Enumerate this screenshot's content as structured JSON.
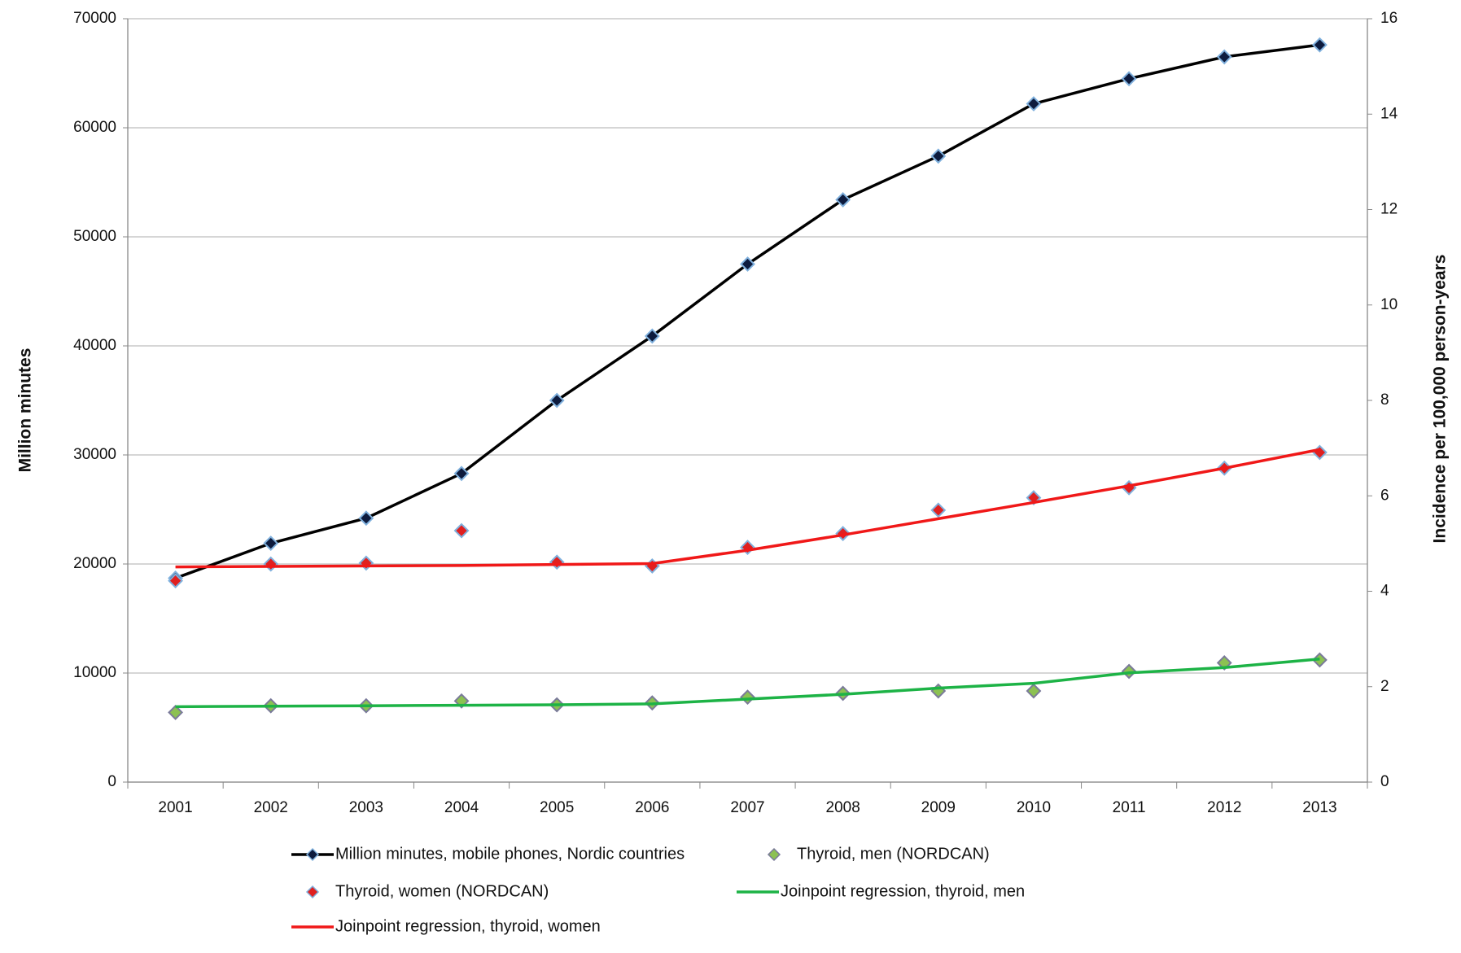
{
  "chart_data": {
    "type": "line",
    "y_label": "Million minutes",
    "y2_label": "Incidence per 100,000 person-years",
    "categories": [
      "2001",
      "2002",
      "2003",
      "2004",
      "2005",
      "2006",
      "2007",
      "2008",
      "2009",
      "2010",
      "2011",
      "2012",
      "2013"
    ],
    "ylim": [
      0,
      70000
    ],
    "yticks": [
      0,
      10000,
      20000,
      30000,
      40000,
      50000,
      60000,
      70000
    ],
    "y2lim": [
      0,
      16
    ],
    "y2ticks": [
      0,
      2,
      4,
      6,
      8,
      10,
      12,
      14,
      16
    ],
    "grid": true,
    "series": [
      {
        "name": "Million minutes, mobile phones, Nordic countries",
        "color": "#000000",
        "marker_color": "#0d1b3e",
        "marker_edge": "#7fb0dd",
        "line": true,
        "marker": "diamond",
        "values": [
          18700,
          21900,
          24200,
          28300,
          35000,
          40900,
          47500,
          53400,
          57400,
          62200,
          64500,
          66500,
          67600
        ]
      },
      {
        "name": "Thyroid, men (NORDCAN)",
        "color": "#8cc152",
        "marker_color": "#8cc152",
        "marker_edge": "#7a7a9a",
        "line": false,
        "marker": "diamond",
        "axis": "y2",
        "values": [
          1.46,
          1.6,
          1.6,
          1.7,
          1.62,
          1.66,
          1.78,
          1.86,
          1.91,
          1.91,
          2.32,
          2.5,
          2.56
        ]
      },
      {
        "name": "Thyroid, women (NORDCAN)",
        "color": "#e02020",
        "marker_color": "#e02020",
        "marker_edge": "#7fb0dd",
        "line": false,
        "marker": "diamond",
        "axis": "y2",
        "values": [
          4.22,
          4.57,
          4.59,
          5.27,
          4.61,
          4.53,
          4.92,
          5.21,
          5.7,
          5.96,
          6.17,
          6.58,
          6.91
        ]
      },
      {
        "name": "Joinpoint regression, thyroid, men",
        "color": "#1db346",
        "line": true,
        "marker": "none",
        "axis": "y2",
        "values": [
          1.58,
          1.59,
          1.6,
          1.61,
          1.62,
          1.64,
          1.74,
          1.84,
          1.97,
          2.07,
          2.29,
          2.4,
          2.58
        ]
      },
      {
        "name": "Joinpoint regression, thyroid, women",
        "color": "#f01818",
        "line": true,
        "marker": "none",
        "axis": "y2",
        "values": [
          4.51,
          4.52,
          4.53,
          4.54,
          4.56,
          4.58,
          4.86,
          5.18,
          5.52,
          5.86,
          6.21,
          6.58,
          6.97
        ]
      }
    ]
  }
}
